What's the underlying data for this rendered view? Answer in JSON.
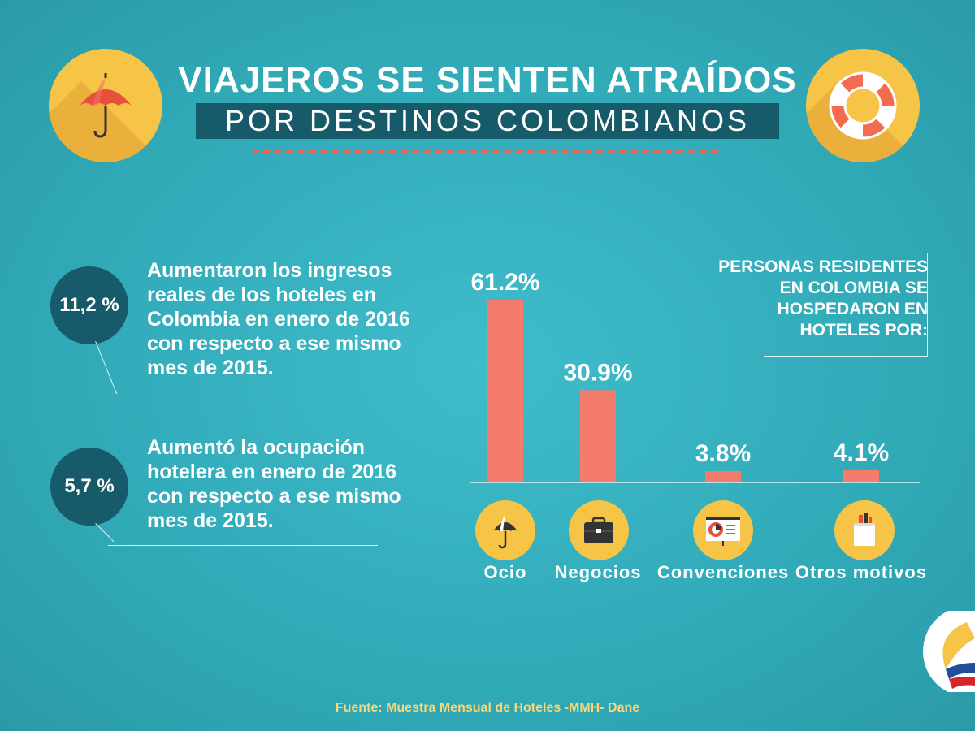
{
  "header": {
    "title_line1": "VIAJEROS SE SIENTEN ATRAÍDOS",
    "title_line2": "POR DESTINOS COLOMBIANOS"
  },
  "stats": [
    {
      "value": "11,2 %",
      "text": "Aumentaron los ingresos reales de los hoteles en Colombia en enero de 2016 con respecto a ese mismo mes de 2015."
    },
    {
      "value": "5,7 %",
      "text": "Aumentó la ocupación hotelera en enero de 2016 con respecto a ese mismo mes de 2015."
    }
  ],
  "legend": "PERSONAS RESIDENTES EN COLOMBIA SE HOSPEDARON EN HOTELES POR:",
  "chart_data": {
    "type": "bar",
    "categories": [
      "Ocio",
      "Negocios",
      "Convenciones",
      "Otros motivos"
    ],
    "values": [
      61.2,
      30.9,
      3.8,
      4.1
    ],
    "value_labels": [
      "61.2%",
      "30.9%",
      "3.8%",
      "4.1%"
    ],
    "ylim": [
      0,
      61.2
    ],
    "grid": false,
    "bar_color": "#f47c6c",
    "icons": [
      "umbrella-icon",
      "briefcase-icon",
      "presentation-icon",
      "shopping-bag-icon"
    ]
  },
  "source": "Fuente: Muestra Mensual de Hoteles -MMH- Dane",
  "colors": {
    "accent_dark": "#175b6a",
    "accent_yellow": "#f6c547",
    "bar": "#f47c6c"
  }
}
